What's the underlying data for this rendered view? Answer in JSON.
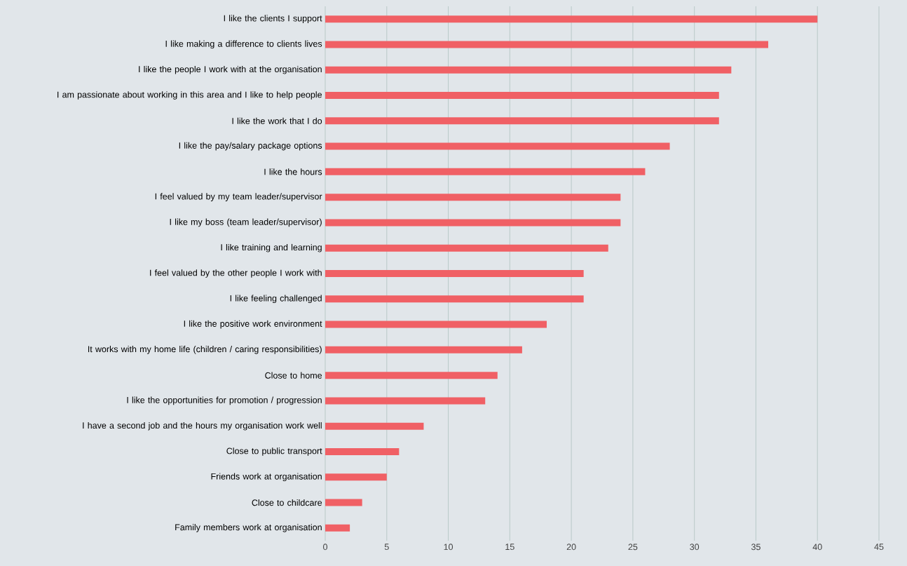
{
  "chart_data": {
    "type": "bar",
    "orientation": "horizontal",
    "categories": [
      "I like the clients I support",
      "I like making a difference to clients lives",
      "I like the people I work with at the organisation",
      "I am passionate about working in this area and I like to help people",
      "I like the work that I do",
      "I like the pay/salary package options",
      "I like the hours",
      "I feel valued by my team leader/supervisor",
      "I like my boss (team leader/supervisor)",
      "I like training and learning",
      "I feel valued by the other people I work with",
      "I like feeling challenged",
      "I like the positive work environment",
      "It works with my home life (children / caring responsibilities)",
      "Close to home",
      "I like the opportunities for promotion / progression",
      "I have a second job and the hours my organisation work well",
      "Close to public transport",
      "Friends work at organisation",
      "Close to childcare",
      "Family members work at organisation"
    ],
    "values": [
      40,
      36,
      33,
      32,
      32,
      28,
      26,
      24,
      24,
      23,
      21,
      21,
      18,
      16,
      14,
      13,
      8,
      6,
      5,
      3,
      2
    ],
    "color": "#f06065",
    "xlim": [
      0,
      45
    ],
    "xticks": [
      0,
      5,
      10,
      15,
      20,
      25,
      30,
      35,
      40,
      45
    ],
    "grid": "x"
  }
}
